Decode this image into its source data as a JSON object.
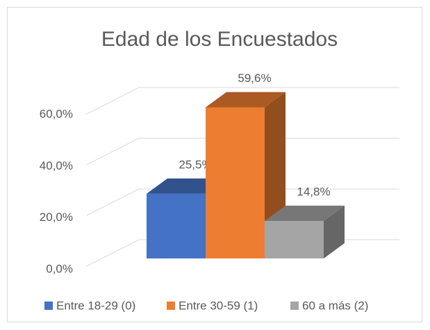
{
  "chart_data": {
    "type": "bar3d",
    "title": "Edad de los Encuestados",
    "series": [
      {
        "name": "Entre 18-29 (0)",
        "color": "#4472c4",
        "values": [
          25.5
        ],
        "value_labels": [
          "25,5%"
        ]
      },
      {
        "name": "Entre 30-59 (1)",
        "color": "#ed7d31",
        "values": [
          59.6
        ],
        "value_labels": [
          "59,6%"
        ]
      },
      {
        "name": "60 a más (2)",
        "color": "#a5a5a5",
        "values": [
          14.8
        ],
        "value_labels": [
          "14,8%"
        ]
      }
    ],
    "ylim": [
      0,
      60
    ],
    "yticks": [
      {
        "value": 0,
        "label": "0,0%"
      },
      {
        "value": 20,
        "label": "20,0%"
      },
      {
        "value": 40,
        "label": "40,0%"
      },
      {
        "value": 60,
        "label": "60,0%"
      }
    ],
    "grid": true,
    "legend": "bottom"
  }
}
